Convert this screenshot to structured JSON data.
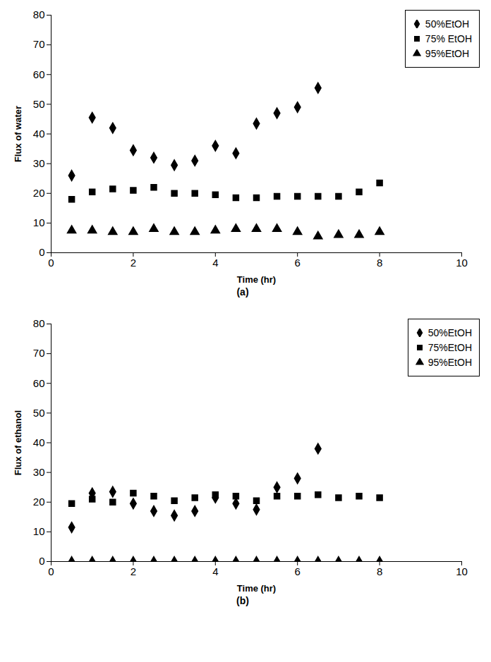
{
  "chart_data": [
    {
      "type": "scatter",
      "caption": "(a)",
      "x_label": "Time (hr)",
      "y_label": "Flux of water",
      "x": [
        0.5,
        1.0,
        1.5,
        2.0,
        2.5,
        3.0,
        3.5,
        4.0,
        4.5,
        5.0,
        5.5,
        6.0,
        6.5,
        7.0,
        7.5,
        8.0
      ],
      "series": [
        {
          "name": "50%EtOH",
          "color": "#000000",
          "marker": "diamond",
          "values": [
            26,
            45.5,
            42,
            34.5,
            32,
            29.5,
            31,
            36,
            33.5,
            43.5,
            47,
            49,
            55.5,
            null,
            null,
            null
          ]
        },
        {
          "name": "75% EtOH",
          "color": "#000000",
          "marker": "square",
          "values": [
            18,
            20.5,
            21.5,
            21,
            22,
            20,
            20,
            19.5,
            18.5,
            18.5,
            19,
            19,
            19,
            19,
            20.5,
            23.5
          ]
        },
        {
          "name": "95%EtOH",
          "color": "#000000",
          "marker": "triangle",
          "values": [
            7.5,
            7.5,
            7,
            7,
            8,
            7,
            7,
            7.5,
            8,
            8,
            8,
            7,
            5.5,
            6,
            6,
            7
          ]
        }
      ],
      "xlim": [
        0,
        10
      ],
      "xticks": [
        0,
        2,
        4,
        6,
        8,
        10
      ],
      "ylim": [
        0,
        80
      ],
      "yticks": [
        0,
        10,
        20,
        30,
        40,
        50,
        60,
        70,
        80
      ],
      "grid": false,
      "legend": "top-right"
    },
    {
      "type": "scatter",
      "caption": "(b)",
      "x_label": "Time (hr)",
      "y_label": "Flux of ethanol",
      "x": [
        0.5,
        1.0,
        1.5,
        2.0,
        2.5,
        3.0,
        3.5,
        4.0,
        4.5,
        5.0,
        5.5,
        6.0,
        6.5,
        7.0,
        7.5,
        8.0
      ],
      "series": [
        {
          "name": "50%EtOH",
          "color": "#000000",
          "marker": "diamond",
          "values": [
            11.5,
            23,
            23.5,
            19.5,
            17,
            15.5,
            17,
            21.5,
            19.5,
            17.5,
            25,
            28,
            38,
            null,
            null,
            null
          ]
        },
        {
          "name": "75%EtOH",
          "color": "#000000",
          "marker": "square",
          "values": [
            19.5,
            21,
            20,
            23,
            22,
            20.5,
            21.5,
            22.5,
            22,
            20.5,
            22,
            22,
            22.5,
            21.5,
            22,
            21.5
          ]
        },
        {
          "name": "95%EtOH",
          "color": "#000000",
          "marker": "triangle",
          "values": [
            0,
            0,
            0,
            0,
            0,
            0,
            0,
            0,
            0,
            0,
            0,
            0,
            0,
            0,
            0,
            0
          ]
        }
      ],
      "xlim": [
        0,
        10
      ],
      "xticks": [
        0,
        2,
        4,
        6,
        8,
        10
      ],
      "ylim": [
        0,
        80
      ],
      "yticks": [
        0,
        10,
        20,
        30,
        40,
        50,
        60,
        70,
        80
      ],
      "grid": false,
      "legend": "top-right"
    }
  ]
}
